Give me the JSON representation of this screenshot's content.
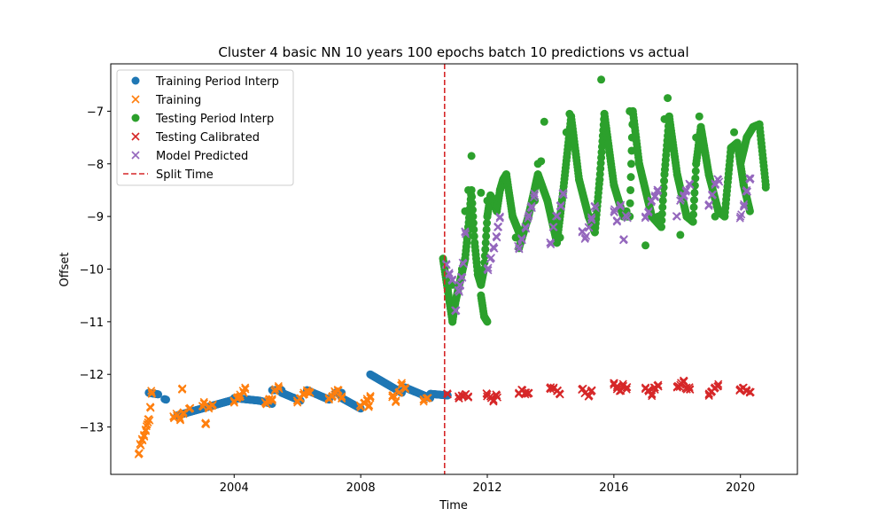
{
  "chart_data": {
    "type": "scatter",
    "title": "Cluster 4 basic NN 10 years 100 epochs batch 10 predictions vs actual",
    "xlabel": "Time",
    "ylabel": "Offset",
    "xlim": [
      2000.1,
      2021.8
    ],
    "ylim": [
      -13.9,
      -6.1
    ],
    "x_ticks": [
      2004,
      2008,
      2012,
      2016,
      2020
    ],
    "y_ticks": [
      -13,
      -12,
      -11,
      -10,
      -9,
      -8,
      -7
    ],
    "legend_position": "top-left",
    "split_time": 2010.65,
    "series": [
      {
        "name": "Training Period Interp",
        "marker": "circle",
        "color": "#1f77b4",
        "segments": [
          {
            "x": [
              2001.3,
              2001.45,
              2001.6
            ],
            "y": [
              -12.35,
              -12.35,
              -12.38
            ]
          },
          {
            "x": [
              2001.8,
              2001.85
            ],
            "y": [
              -12.47,
              -12.48
            ]
          },
          {
            "x": [
              2002.2,
              2004.0
            ],
            "y": [
              -12.78,
              -12.48
            ]
          },
          {
            "x": [
              2004.0,
              2004.8
            ],
            "y": [
              -12.45,
              -12.5
            ]
          },
          {
            "x": [
              2004.8,
              2005.2
            ],
            "y": [
              -12.5,
              -12.56
            ]
          },
          {
            "x": [
              2005.2,
              2005.5
            ],
            "y": [
              -12.3,
              -12.3
            ]
          },
          {
            "x": [
              2005.5,
              2006.1
            ],
            "y": [
              -12.35,
              -12.5
            ]
          },
          {
            "x": [
              2006.3,
              2007.0
            ],
            "y": [
              -12.3,
              -12.48
            ]
          },
          {
            "x": [
              2007.2,
              2007.4
            ],
            "y": [
              -12.35,
              -12.35
            ]
          },
          {
            "x": [
              2007.4,
              2008.0
            ],
            "y": [
              -12.45,
              -12.65
            ]
          },
          {
            "x": [
              2008.3,
              2009.3
            ],
            "y": [
              -12.0,
              -12.35
            ]
          },
          {
            "x": [
              2009.4,
              2010.2
            ],
            "y": [
              -12.25,
              -12.45
            ]
          },
          {
            "x": [
              2010.2,
              2010.75
            ],
            "y": [
              -12.37,
              -12.4
            ]
          }
        ]
      },
      {
        "name": "Training",
        "marker": "x",
        "color": "#ff7f0e",
        "points": [
          [
            2001.0,
            -13.5
          ],
          [
            2001.05,
            -13.35
          ],
          [
            2001.1,
            -13.25
          ],
          [
            2001.15,
            -13.15
          ],
          [
            2001.2,
            -13.05
          ],
          [
            2001.25,
            -12.95
          ],
          [
            2001.3,
            -12.85
          ],
          [
            2001.35,
            -12.62
          ],
          [
            2001.4,
            -12.35
          ],
          [
            2002.1,
            -12.82
          ],
          [
            2002.2,
            -12.78
          ],
          [
            2002.3,
            -12.85
          ],
          [
            2002.35,
            -12.28
          ],
          [
            2002.4,
            -12.72
          ],
          [
            2002.6,
            -12.65
          ],
          [
            2003.0,
            -12.6
          ],
          [
            2003.05,
            -12.55
          ],
          [
            2003.1,
            -12.92
          ],
          [
            2003.2,
            -12.65
          ],
          [
            2003.3,
            -12.6
          ],
          [
            2004.0,
            -12.5
          ],
          [
            2004.1,
            -12.45
          ],
          [
            2004.2,
            -12.42
          ],
          [
            2004.3,
            -12.35
          ],
          [
            2004.35,
            -12.28
          ],
          [
            2005.0,
            -12.55
          ],
          [
            2005.1,
            -12.48
          ],
          [
            2005.2,
            -12.5
          ],
          [
            2005.3,
            -12.28
          ],
          [
            2005.4,
            -12.25
          ],
          [
            2006.0,
            -12.5
          ],
          [
            2006.1,
            -12.45
          ],
          [
            2006.2,
            -12.35
          ],
          [
            2006.3,
            -12.3
          ],
          [
            2006.4,
            -12.35
          ],
          [
            2007.0,
            -12.48
          ],
          [
            2007.1,
            -12.42
          ],
          [
            2007.2,
            -12.35
          ],
          [
            2007.3,
            -12.3
          ],
          [
            2007.4,
            -12.45
          ],
          [
            2008.0,
            -12.62
          ],
          [
            2008.1,
            -12.55
          ],
          [
            2008.2,
            -12.5
          ],
          [
            2008.25,
            -12.62
          ],
          [
            2008.3,
            -12.45
          ],
          [
            2009.0,
            -12.4
          ],
          [
            2009.1,
            -12.52
          ],
          [
            2009.2,
            -12.35
          ],
          [
            2009.3,
            -12.2
          ],
          [
            2009.4,
            -12.25
          ],
          [
            2010.0,
            -12.48
          ],
          [
            2010.1,
            -12.45
          ]
        ]
      },
      {
        "name": "Testing Period Interp",
        "marker": "circle",
        "color": "#2ca02c",
        "points": [
          [
            2010.9,
            -10.3
          ],
          [
            2011.2,
            -10.0
          ],
          [
            2011.3,
            -8.9
          ],
          [
            2011.4,
            -8.5
          ],
          [
            2011.5,
            -7.85
          ],
          [
            2011.8,
            -8.55
          ],
          [
            2012.0,
            -8.7
          ],
          [
            2012.6,
            -8.3
          ],
          [
            2012.9,
            -9.4
          ],
          [
            2013.0,
            -9.6
          ],
          [
            2013.5,
            -8.7
          ],
          [
            2013.6,
            -8.0
          ],
          [
            2013.7,
            -7.95
          ],
          [
            2013.8,
            -7.2
          ],
          [
            2014.3,
            -9.4
          ],
          [
            2014.5,
            -7.4
          ],
          [
            2014.6,
            -7.05
          ],
          [
            2015.4,
            -9.0
          ],
          [
            2015.6,
            -6.4
          ],
          [
            2015.7,
            -7.15
          ],
          [
            2016.4,
            -8.9
          ],
          [
            2016.5,
            -7.0
          ],
          [
            2016.6,
            -7.05
          ],
          [
            2017.0,
            -9.55
          ],
          [
            2017.4,
            -9.0
          ],
          [
            2017.6,
            -7.15
          ],
          [
            2017.7,
            -6.75
          ],
          [
            2018.1,
            -9.35
          ],
          [
            2018.6,
            -7.5
          ],
          [
            2018.7,
            -7.1
          ],
          [
            2019.2,
            -9.0
          ],
          [
            2019.7,
            -7.75
          ],
          [
            2019.8,
            -7.4
          ],
          [
            2020.1,
            -8.35
          ],
          [
            2020.6,
            -7.25
          ],
          [
            2020.8,
            -8.45
          ]
        ],
        "curves": [
          {
            "x": [
              2010.6,
              2010.75,
              2010.9,
              2011.0,
              2011.15,
              2011.3,
              2011.4,
              2011.5
            ],
            "y": [
              -9.8,
              -10.4,
              -11.0,
              -10.6,
              -10.2,
              -9.8,
              -9.2,
              -8.5
            ]
          },
          {
            "x": [
              2011.5,
              2011.6,
              2011.7,
              2011.8,
              2011.9,
              2012.0
            ],
            "y": [
              -8.5,
              -9.5,
              -10.1,
              -10.3,
              -10.0,
              -9.0
            ]
          },
          {
            "x": [
              2011.8,
              2011.9,
              2012.0
            ],
            "y": [
              -10.5,
              -10.9,
              -11.0
            ]
          },
          {
            "x": [
              2012.0,
              2012.1,
              2012.2,
              2012.3,
              2012.4,
              2012.5,
              2012.6,
              2012.8,
              2013.0
            ],
            "y": [
              -9.0,
              -8.6,
              -8.7,
              -8.9,
              -8.5,
              -8.3,
              -8.2,
              -9.0,
              -9.3
            ]
          },
          {
            "x": [
              2013.0,
              2013.3,
              2013.6,
              2013.9,
              2014.2
            ],
            "y": [
              -9.6,
              -9.0,
              -8.2,
              -8.7,
              -9.5
            ]
          },
          {
            "x": [
              2014.2,
              2014.4,
              2014.65,
              2014.9,
              2015.2,
              2015.4
            ],
            "y": [
              -9.5,
              -8.5,
              -7.1,
              -8.3,
              -9.0,
              -9.3
            ]
          },
          {
            "x": [
              2015.4,
              2015.55,
              2015.7,
              2016.0,
              2016.3,
              2016.5
            ],
            "y": [
              -9.3,
              -8.3,
              -7.05,
              -8.4,
              -9.0,
              -9.0
            ]
          },
          {
            "x": [
              2016.5,
              2016.6,
              2016.8,
              2017.2,
              2017.5
            ],
            "y": [
              -9.0,
              -7.0,
              -8.0,
              -9.0,
              -9.2
            ]
          },
          {
            "x": [
              2017.5,
              2017.6,
              2017.75,
              2018.0,
              2018.3,
              2018.5
            ],
            "y": [
              -9.2,
              -8.2,
              -7.1,
              -8.2,
              -9.0,
              -9.1
            ]
          },
          {
            "x": [
              2018.5,
              2018.6,
              2018.75,
              2019.0,
              2019.3,
              2019.5
            ],
            "y": [
              -9.1,
              -8.0,
              -7.3,
              -8.2,
              -8.9,
              -9.0
            ]
          },
          {
            "x": [
              2019.5,
              2019.7,
              2019.9,
              2020.1,
              2020.3
            ],
            "y": [
              -9.0,
              -7.7,
              -7.6,
              -8.4,
              -8.9
            ]
          },
          {
            "x": [
              2020.0,
              2020.2,
              2020.4,
              2020.6,
              2020.8
            ],
            "y": [
              -8.0,
              -7.5,
              -7.3,
              -7.25,
              -8.4
            ]
          }
        ]
      },
      {
        "name": "Testing Calibrated",
        "marker": "x",
        "color": "#d62728",
        "points": [
          [
            2010.75,
            -12.38
          ],
          [
            2011.1,
            -12.45
          ],
          [
            2011.2,
            -12.4
          ],
          [
            2011.3,
            -12.38
          ],
          [
            2011.4,
            -12.42
          ],
          [
            2012.0,
            -12.38
          ],
          [
            2012.1,
            -12.42
          ],
          [
            2012.2,
            -12.48
          ],
          [
            2012.3,
            -12.4
          ],
          [
            2013.0,
            -12.35
          ],
          [
            2013.1,
            -12.3
          ],
          [
            2013.2,
            -12.38
          ],
          [
            2013.3,
            -12.35
          ],
          [
            2014.0,
            -12.28
          ],
          [
            2014.1,
            -12.25
          ],
          [
            2014.2,
            -12.32
          ],
          [
            2014.3,
            -12.38
          ],
          [
            2015.0,
            -12.28
          ],
          [
            2015.1,
            -12.35
          ],
          [
            2015.2,
            -12.42
          ],
          [
            2015.3,
            -12.3
          ],
          [
            2016.0,
            -12.2
          ],
          [
            2016.1,
            -12.25
          ],
          [
            2016.2,
            -12.3
          ],
          [
            2016.3,
            -12.22
          ],
          [
            2016.4,
            -12.25
          ],
          [
            2017.0,
            -12.25
          ],
          [
            2017.1,
            -12.3
          ],
          [
            2017.2,
            -12.38
          ],
          [
            2017.3,
            -12.25
          ],
          [
            2017.4,
            -12.2
          ],
          [
            2018.0,
            -12.25
          ],
          [
            2018.1,
            -12.2
          ],
          [
            2018.2,
            -12.15
          ],
          [
            2018.3,
            -12.25
          ],
          [
            2018.4,
            -12.28
          ],
          [
            2019.0,
            -12.38
          ],
          [
            2019.1,
            -12.32
          ],
          [
            2019.2,
            -12.25
          ],
          [
            2019.3,
            -12.22
          ],
          [
            2020.0,
            -12.28
          ],
          [
            2020.1,
            -12.25
          ],
          [
            2020.2,
            -12.32
          ],
          [
            2020.3,
            -12.35
          ]
        ]
      },
      {
        "name": "Model Predicted",
        "marker": "x",
        "color": "#9467bd",
        "points": [
          [
            2010.7,
            -9.9
          ],
          [
            2010.8,
            -10.1
          ],
          [
            2010.9,
            -10.2
          ],
          [
            2011.0,
            -10.8
          ],
          [
            2011.1,
            -10.4
          ],
          [
            2011.15,
            -10.3
          ],
          [
            2011.2,
            -10.15
          ],
          [
            2011.25,
            -9.9
          ],
          [
            2011.3,
            -9.3
          ],
          [
            2012.0,
            -10.0
          ],
          [
            2012.1,
            -9.8
          ],
          [
            2012.2,
            -9.6
          ],
          [
            2012.3,
            -9.4
          ],
          [
            2012.35,
            -9.2
          ],
          [
            2012.4,
            -9.0
          ],
          [
            2013.0,
            -9.6
          ],
          [
            2013.1,
            -9.45
          ],
          [
            2013.2,
            -9.2
          ],
          [
            2013.3,
            -9.0
          ],
          [
            2013.4,
            -8.8
          ],
          [
            2013.5,
            -8.6
          ],
          [
            2014.0,
            -9.5
          ],
          [
            2014.1,
            -9.2
          ],
          [
            2014.2,
            -9.0
          ],
          [
            2014.3,
            -8.8
          ],
          [
            2014.4,
            -8.55
          ],
          [
            2015.0,
            -9.3
          ],
          [
            2015.1,
            -9.4
          ],
          [
            2015.2,
            -9.2
          ],
          [
            2015.3,
            -9.05
          ],
          [
            2015.4,
            -8.8
          ],
          [
            2016.0,
            -8.9
          ],
          [
            2016.1,
            -9.1
          ],
          [
            2016.2,
            -8.8
          ],
          [
            2016.3,
            -9.45
          ],
          [
            2016.4,
            -9.0
          ],
          [
            2017.0,
            -9.0
          ],
          [
            2017.1,
            -8.9
          ],
          [
            2017.2,
            -8.7
          ],
          [
            2017.3,
            -8.6
          ],
          [
            2017.4,
            -8.5
          ],
          [
            2018.0,
            -9.0
          ],
          [
            2018.1,
            -8.7
          ],
          [
            2018.2,
            -8.6
          ],
          [
            2018.3,
            -8.5
          ],
          [
            2018.4,
            -8.4
          ],
          [
            2019.0,
            -8.8
          ],
          [
            2019.1,
            -8.6
          ],
          [
            2019.2,
            -8.4
          ],
          [
            2019.3,
            -8.3
          ],
          [
            2020.0,
            -9.0
          ],
          [
            2020.1,
            -8.8
          ],
          [
            2020.2,
            -8.5
          ],
          [
            2020.3,
            -8.3
          ]
        ]
      },
      {
        "name": "Split Time",
        "marker": "dashed-line",
        "color": "#d62728"
      }
    ]
  }
}
